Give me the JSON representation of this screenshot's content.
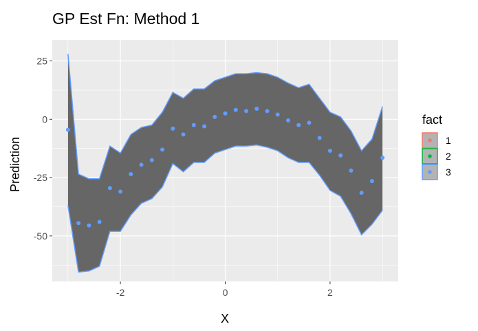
{
  "chart_data": {
    "type": "line",
    "title": "GP Est Fn: Method 1",
    "xlabel": "X",
    "ylabel": "Prediction",
    "xlim": [
      -3.3,
      3.3
    ],
    "ylim": [
      -69.5,
      34
    ],
    "x_ticks": [
      -2,
      0,
      2
    ],
    "x_tick_labels": [
      "-2",
      "0",
      "2"
    ],
    "y_ticks": [
      25,
      0,
      -25,
      -50
    ],
    "y_tick_labels": [
      "25",
      "0",
      "-25",
      "-50"
    ],
    "grid": true,
    "legend_position": "right",
    "legend": {
      "title": "fact",
      "entries": [
        {
          "label": "1",
          "color": "#F8766D"
        },
        {
          "label": "2",
          "color": "#00BA38"
        },
        {
          "label": "3",
          "color": "#619CFF"
        }
      ]
    },
    "ribbon": {
      "series": "3",
      "color": "#619CFF",
      "fill": "#666666",
      "x": [
        -3.0,
        -2.8,
        -2.6,
        -2.4,
        -2.2,
        -2.0,
        -1.8,
        -1.6,
        -1.4,
        -1.2,
        -1.0,
        -0.8,
        -0.6,
        -0.4,
        -0.2,
        0.0,
        0.2,
        0.4,
        0.6,
        0.8,
        1.0,
        1.2,
        1.4,
        1.6,
        1.8,
        2.0,
        2.2,
        2.4,
        2.6,
        2.8,
        3.0
      ],
      "upper": [
        28,
        -23.5,
        -25.5,
        -25.5,
        -11.5,
        -14.5,
        -6.5,
        -3.5,
        -2.5,
        3,
        11.5,
        9,
        13,
        13,
        16.5,
        18,
        19.5,
        19.5,
        20,
        19.5,
        18,
        15.5,
        13.5,
        15,
        9,
        3,
        1,
        -5,
        -13.5,
        -8.5,
        5.5
      ],
      "lower": [
        -37,
        -65.5,
        -65,
        -63,
        -48,
        -48,
        -41,
        -36,
        -34,
        -29,
        -19,
        -22.5,
        -18.5,
        -18.5,
        -14.5,
        -13,
        -11.5,
        -11.5,
        -11,
        -12,
        -13.5,
        -16.5,
        -18.5,
        -18.5,
        -24,
        -30.5,
        -33,
        -40.5,
        -49.5,
        -45,
        -39
      ]
    },
    "points": {
      "series": "3",
      "color": "#619CFF",
      "x": [
        -3.0,
        -2.8,
        -2.6,
        -2.4,
        -2.2,
        -2.0,
        -1.8,
        -1.6,
        -1.4,
        -1.2,
        -1.0,
        -0.8,
        -0.6,
        -0.4,
        -0.2,
        0.0,
        0.2,
        0.4,
        0.6,
        0.8,
        1.0,
        1.2,
        1.4,
        1.6,
        1.8,
        2.0,
        2.2,
        2.4,
        2.6,
        2.8,
        3.0
      ],
      "y": [
        -4.5,
        -44.5,
        -45.5,
        -44,
        -29.5,
        -31,
        -23.5,
        -19.5,
        -17.5,
        -13,
        -4,
        -6.5,
        -2.5,
        -3,
        1,
        2.5,
        4,
        3.5,
        4.5,
        3.5,
        2,
        -0.5,
        -2.5,
        -1.5,
        -8,
        -13.5,
        -15.5,
        -22,
        -31.5,
        -26.5,
        -16.5
      ]
    }
  }
}
